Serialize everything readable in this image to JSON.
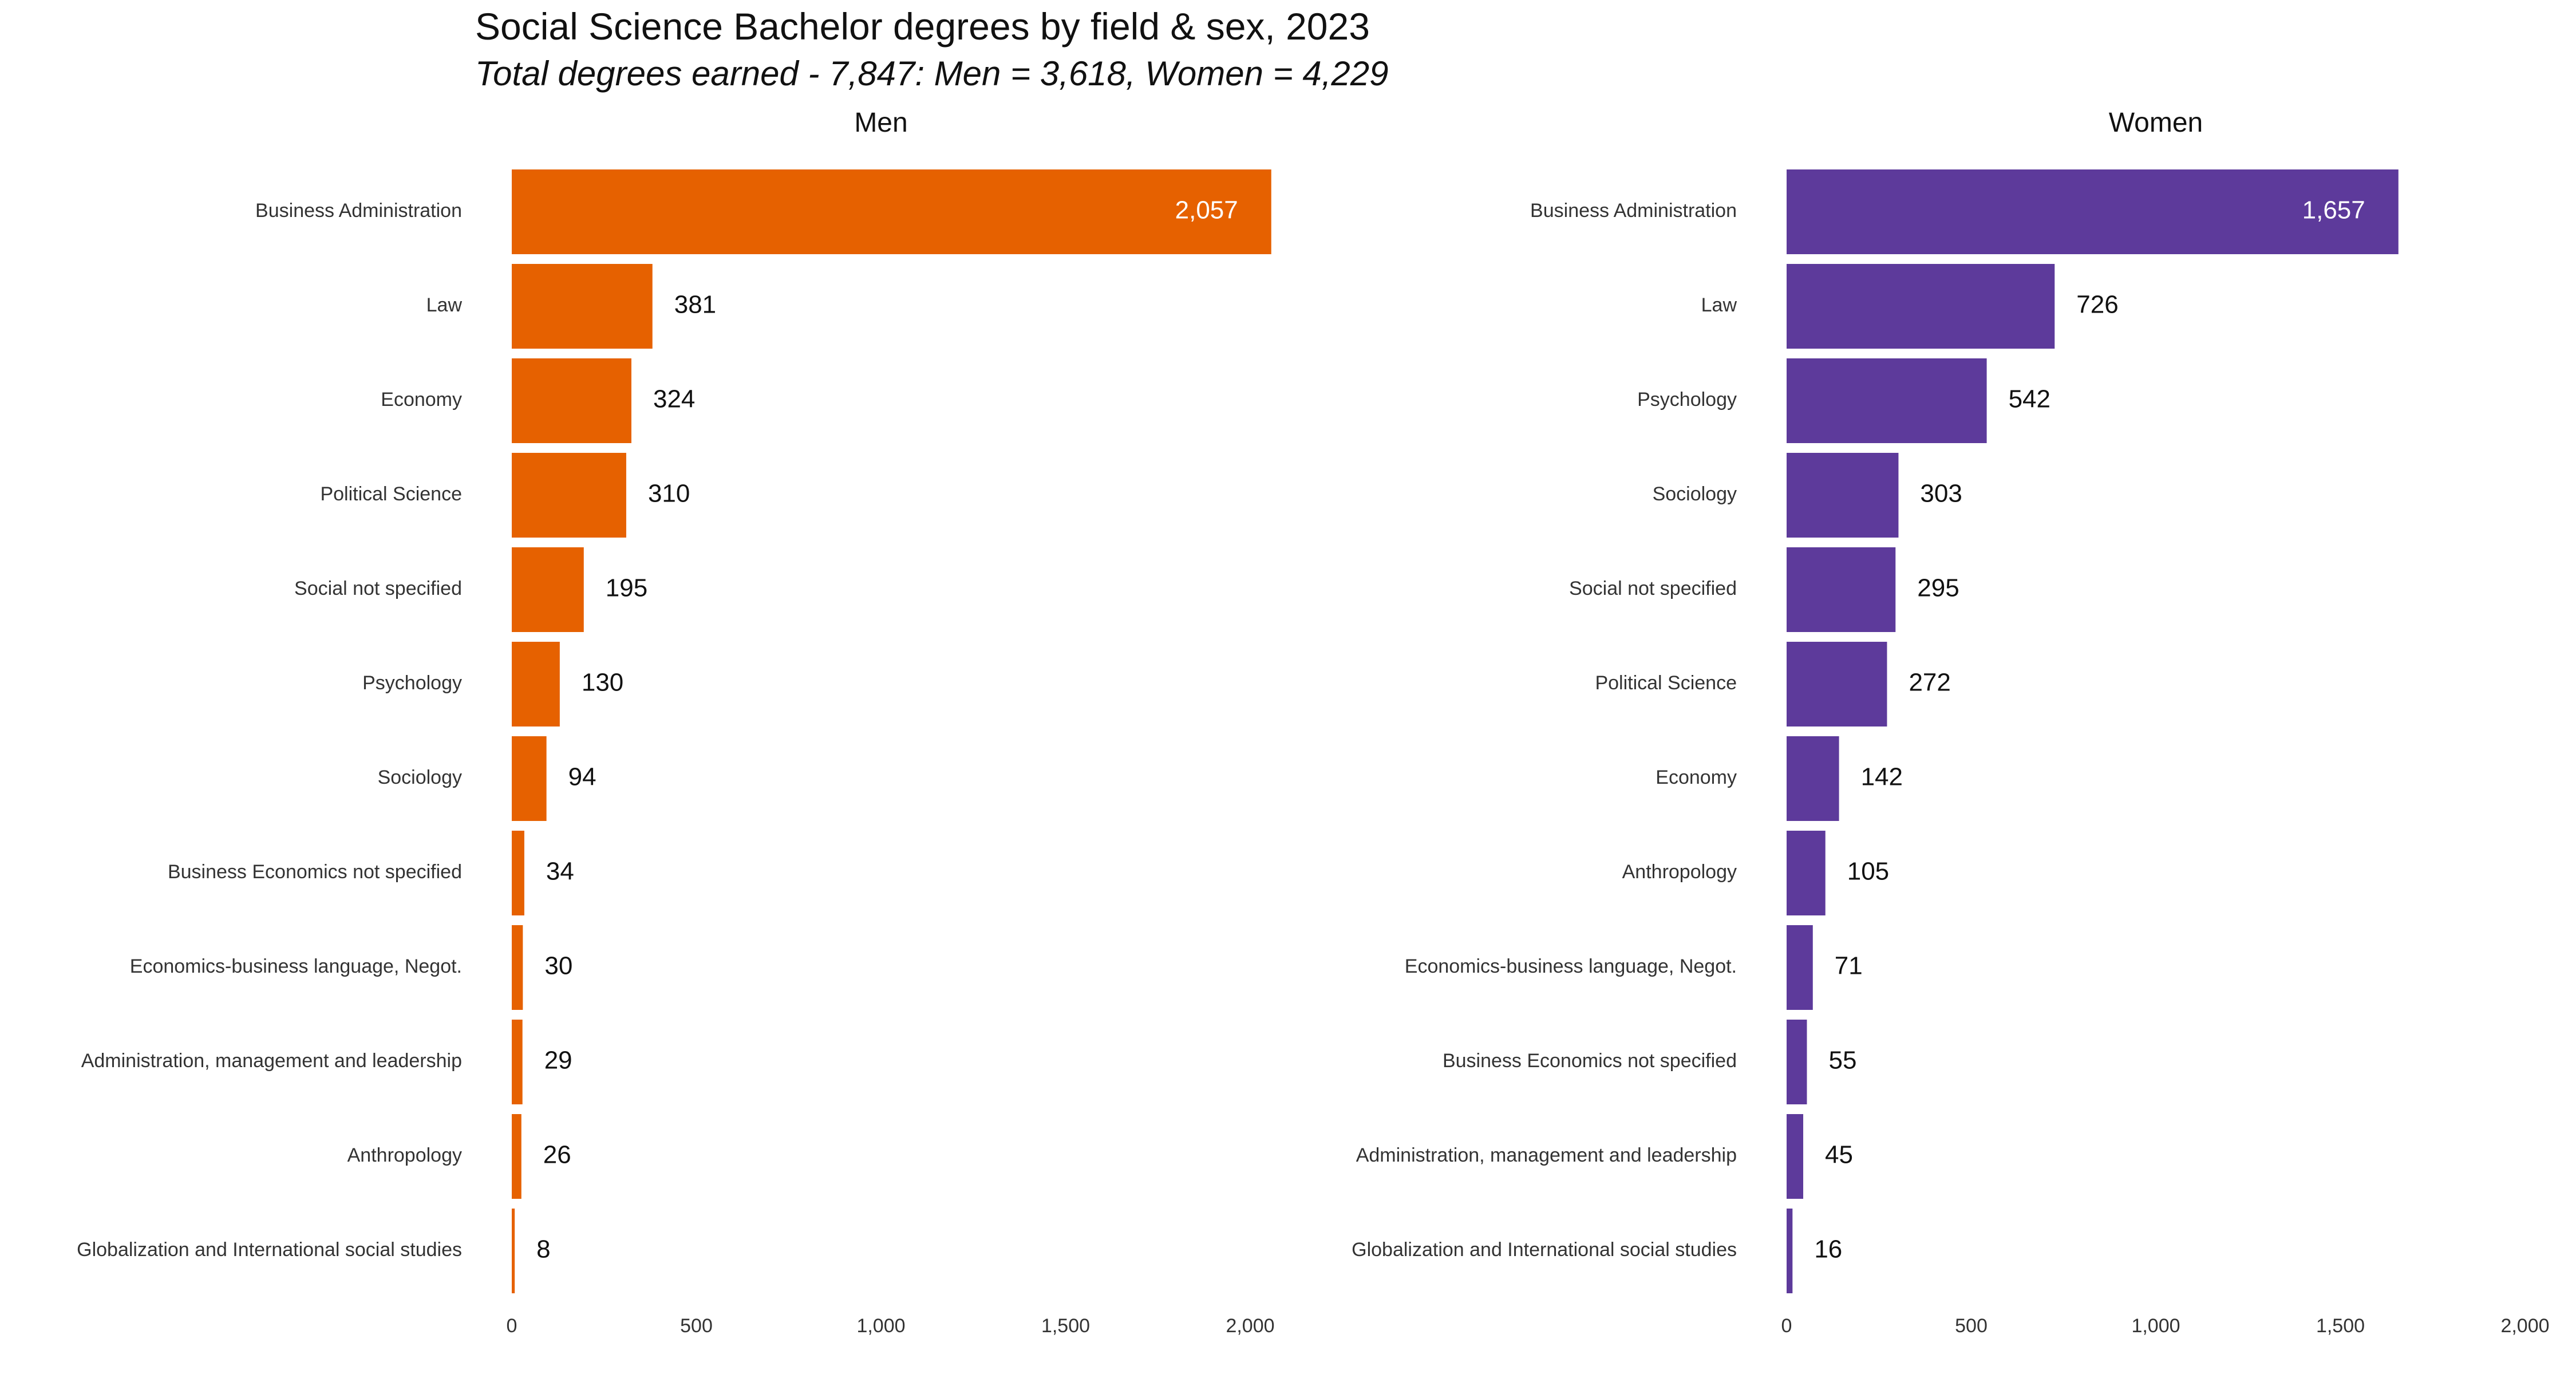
{
  "chart_data": {
    "type": "bar",
    "orientation": "horizontal",
    "title": "Social Science Bachelor degrees by field & sex, 2023",
    "subtitle": "Total degrees earned - 7,847: Men = 3,618, Women = 4,229",
    "xlim": [
      0,
      2000
    ],
    "xticks": [
      "0",
      "500",
      "1,000",
      "1,500",
      "2,000"
    ],
    "grid": false,
    "panels": [
      {
        "name": "Men",
        "color": "#E66100",
        "categories": [
          "Business Administration",
          "Law",
          "Economy",
          "Political Science",
          "Social not specified",
          "Psychology",
          "Sociology",
          "Business Economics not specified",
          "Economics-business language, Negot.",
          "Administration, management and leadership",
          "Anthropology",
          "Globalization and International social studies"
        ],
        "values": [
          2057,
          381,
          324,
          310,
          195,
          130,
          94,
          34,
          30,
          29,
          26,
          8
        ],
        "labels": [
          "2,057",
          "381",
          "324",
          "310",
          "195",
          "130",
          "94",
          "34",
          "30",
          "29",
          "26",
          "8"
        ]
      },
      {
        "name": "Women",
        "color": "#5D3A9B",
        "categories": [
          "Business Administration",
          "Law",
          "Psychology",
          "Sociology",
          "Social not specified",
          "Political Science",
          "Economy",
          "Anthropology",
          "Economics-business language, Negot.",
          "Business Economics not specified",
          "Administration, management and leadership",
          "Globalization and International social studies"
        ],
        "values": [
          1657,
          726,
          542,
          303,
          295,
          272,
          142,
          105,
          71,
          55,
          45,
          16
        ],
        "labels": [
          "1,657",
          "726",
          "542",
          "303",
          "295",
          "272",
          "142",
          "105",
          "71",
          "55",
          "45",
          "16"
        ]
      }
    ]
  }
}
